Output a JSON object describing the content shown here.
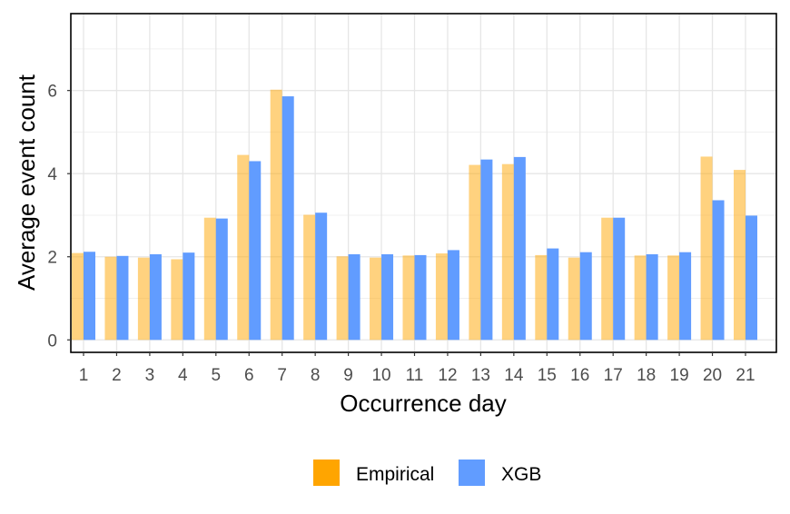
{
  "chart_data": {
    "type": "bar",
    "title": "",
    "xlabel": "Occurrence day",
    "ylabel": "Average event count",
    "categories": [
      "1",
      "2",
      "3",
      "4",
      "5",
      "6",
      "7",
      "8",
      "9",
      "10",
      "11",
      "12",
      "13",
      "14",
      "15",
      "16",
      "17",
      "18",
      "19",
      "20",
      "21"
    ],
    "series": [
      {
        "name": "Empirical",
        "color": "#FFA500",
        "opacity": 0.5,
        "values": [
          2.09,
          2.0,
          1.98,
          1.94,
          2.94,
          4.45,
          6.02,
          3.01,
          2.01,
          1.98,
          2.03,
          2.08,
          4.21,
          4.23,
          2.04,
          1.98,
          2.94,
          2.03,
          2.03,
          4.41,
          4.09
        ]
      },
      {
        "name": "XGB",
        "color": "#619CFF",
        "opacity": 1.0,
        "values": [
          2.12,
          2.02,
          2.06,
          2.1,
          2.92,
          4.3,
          5.86,
          3.06,
          2.06,
          2.06,
          2.04,
          2.16,
          4.34,
          4.4,
          2.2,
          2.11,
          2.94,
          2.06,
          2.11,
          3.36,
          2.99
        ]
      }
    ],
    "ylim": [
      -0.3,
      7.85
    ],
    "yticks": [
      0,
      2,
      4,
      6
    ],
    "grid": true,
    "legend_position": "bottom"
  }
}
